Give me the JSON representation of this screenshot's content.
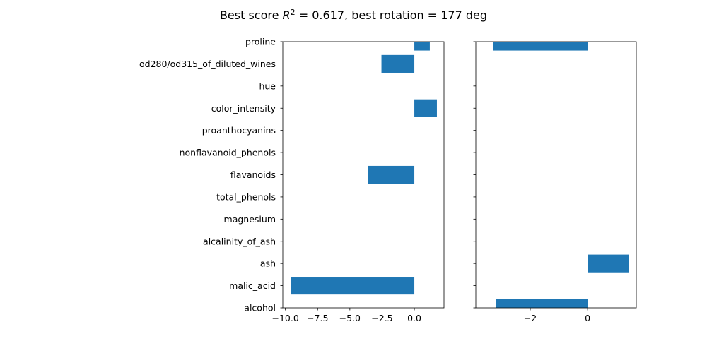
{
  "title": {
    "prefix": "Best score ",
    "r": "R",
    "sup": "2",
    "suffix": " = 0.617, best rotation = 177 deg"
  },
  "chart_data": [
    {
      "type": "bar",
      "orientation": "horizontal",
      "categories": [
        "alcohol",
        "malic_acid",
        "ash",
        "alcalinity_of_ash",
        "magnesium",
        "total_phenols",
        "flavanoids",
        "nonflavanoid_phenols",
        "proanthocyanins",
        "color_intensity",
        "hue",
        "od280/od315_of_diluted_wines",
        "proline"
      ],
      "values": [
        0,
        -9.55,
        0,
        0,
        0,
        0,
        -3.6,
        0,
        0,
        1.75,
        0,
        -2.55,
        1.2
      ],
      "xlim": [
        -10.2,
        2.3
      ],
      "xticks": [
        -10.0,
        -7.5,
        -5.0,
        -2.5,
        0.0
      ],
      "xtick_labels": [
        "−10.0",
        "−7.5",
        "−5.0",
        "−2.5",
        "0.0"
      ],
      "color": "#1f77b4"
    },
    {
      "type": "bar",
      "orientation": "horizontal",
      "categories": [
        "alcohol",
        "malic_acid",
        "ash",
        "alcalinity_of_ash",
        "magnesium",
        "total_phenols",
        "flavanoids",
        "nonflavanoid_phenols",
        "proanthocyanins",
        "color_intensity",
        "hue",
        "od280/od315_of_diluted_wines",
        "proline"
      ],
      "values": [
        -3.2,
        0,
        1.45,
        0,
        0,
        0,
        0,
        0,
        0,
        0,
        0,
        0,
        -3.3
      ],
      "xlim": [
        -3.9,
        1.7
      ],
      "xticks": [
        -2,
        0
      ],
      "xtick_labels": [
        "−2",
        "0"
      ],
      "color": "#1f77b4",
      "sharey": true
    }
  ]
}
